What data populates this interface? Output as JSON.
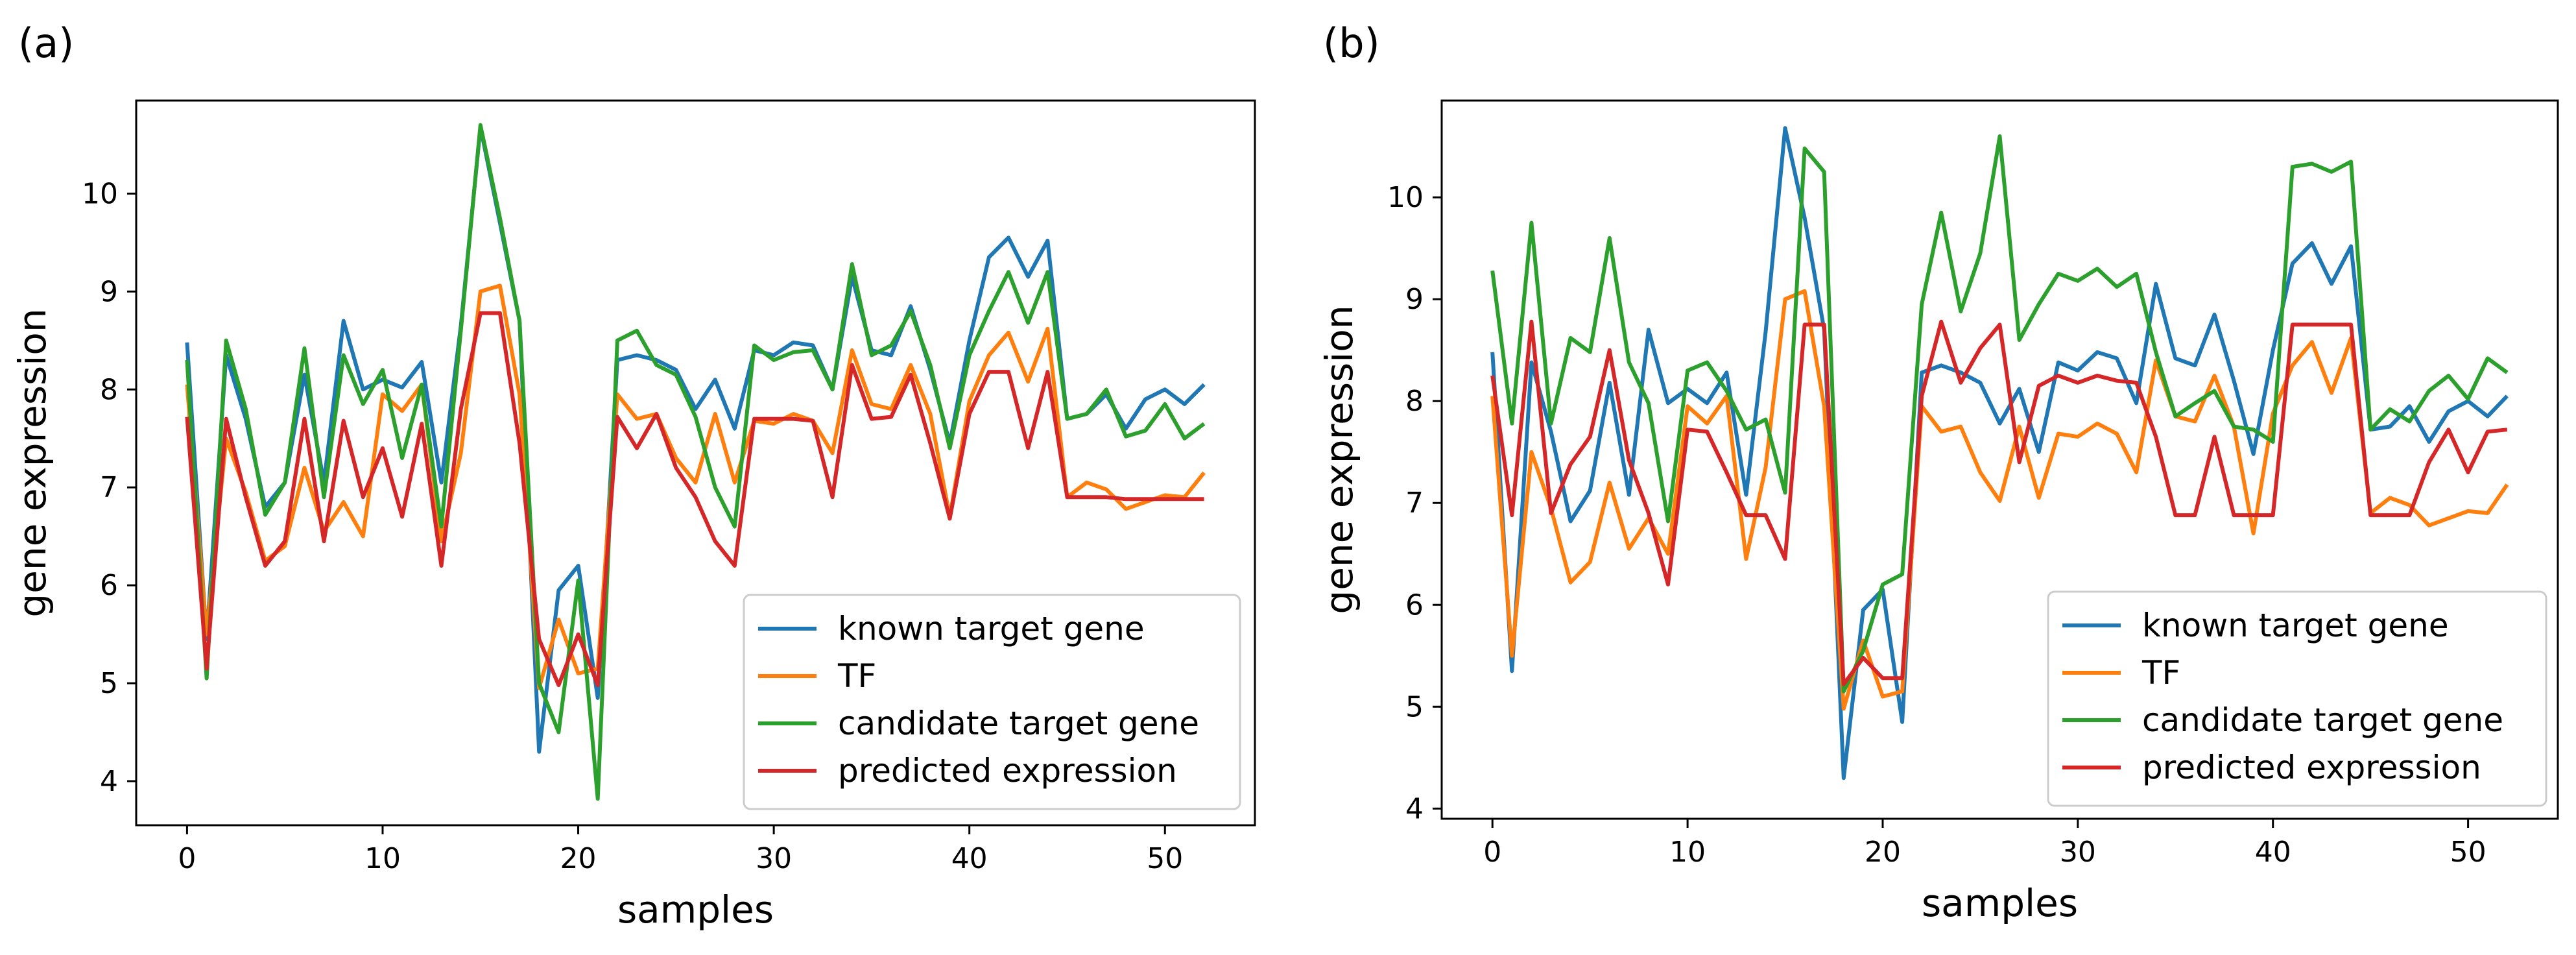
{
  "chart_data": [
    {
      "type": "line",
      "panel_label": "(a)",
      "xlabel": "samples",
      "ylabel": "gene expression",
      "xlim": [
        -2.6,
        54.6
      ],
      "ylim": [
        3.55,
        10.95
      ],
      "xticks": [
        0,
        10,
        20,
        30,
        40,
        50
      ],
      "yticks": [
        4,
        5,
        6,
        7,
        8,
        9,
        10
      ],
      "legend_position": "lower-right",
      "series": [
        {
          "name": "known target gene",
          "color": "#1f77b4",
          "values": [
            8.48,
            5.45,
            8.35,
            7.7,
            6.8,
            7.05,
            8.15,
            7.05,
            8.7,
            8.0,
            8.1,
            8.02,
            8.28,
            7.05,
            8.65,
            10.68,
            9.7,
            8.7,
            4.3,
            5.95,
            6.2,
            4.85,
            8.3,
            8.35,
            8.3,
            8.2,
            7.8,
            8.1,
            7.6,
            8.4,
            8.35,
            8.48,
            8.45,
            8.0,
            9.15,
            8.4,
            8.35,
            8.85,
            8.2,
            7.45,
            8.5,
            9.35,
            9.55,
            9.15,
            9.52,
            7.7,
            7.75,
            7.95,
            7.6,
            7.9,
            8.0,
            7.85,
            8.05
          ]
        },
        {
          "name": "TF",
          "color": "#ff7f0e",
          "values": [
            8.05,
            5.5,
            7.5,
            6.95,
            6.25,
            6.4,
            7.2,
            6.55,
            6.85,
            6.5,
            7.95,
            7.78,
            8.05,
            6.45,
            7.35,
            9.0,
            9.06,
            7.95,
            4.95,
            5.65,
            5.1,
            5.15,
            7.95,
            7.7,
            7.75,
            7.3,
            7.05,
            7.75,
            7.05,
            7.68,
            7.65,
            7.75,
            7.68,
            7.35,
            8.4,
            7.85,
            7.8,
            8.25,
            7.75,
            6.7,
            7.88,
            8.35,
            8.58,
            8.08,
            8.62,
            6.9,
            7.05,
            6.98,
            6.78,
            6.85,
            6.92,
            6.9,
            7.15
          ]
        },
        {
          "name": "candidate target gene",
          "color": "#2ca02c",
          "values": [
            8.3,
            5.05,
            8.5,
            7.8,
            6.72,
            7.05,
            8.42,
            6.9,
            8.35,
            7.85,
            8.2,
            7.3,
            8.05,
            6.6,
            8.6,
            10.7,
            9.75,
            8.7,
            5.0,
            4.5,
            6.05,
            3.82,
            8.5,
            8.6,
            8.25,
            8.15,
            7.72,
            7.0,
            6.6,
            8.45,
            8.3,
            8.38,
            8.4,
            8.0,
            9.28,
            8.35,
            8.45,
            8.8,
            8.25,
            7.4,
            8.35,
            8.8,
            9.2,
            8.68,
            9.2,
            7.7,
            7.75,
            8.0,
            7.52,
            7.58,
            7.85,
            7.5,
            7.65
          ]
        },
        {
          "name": "predicted expression",
          "color": "#d62728",
          "values": [
            7.72,
            5.15,
            7.7,
            6.9,
            6.2,
            6.45,
            7.7,
            6.45,
            7.68,
            6.9,
            7.4,
            6.7,
            7.65,
            6.2,
            7.8,
            8.78,
            8.78,
            7.45,
            5.45,
            4.98,
            5.5,
            4.98,
            7.72,
            7.4,
            7.75,
            7.2,
            6.9,
            6.45,
            6.2,
            7.7,
            7.7,
            7.7,
            7.68,
            6.9,
            8.25,
            7.7,
            7.72,
            8.15,
            7.45,
            6.68,
            7.75,
            8.18,
            8.18,
            7.4,
            8.18,
            6.9,
            6.9,
            6.9,
            6.88,
            6.88,
            6.88,
            6.88,
            6.88
          ]
        }
      ],
      "legend": [
        "known target gene",
        "TF",
        "candidate target gene",
        "predicted expression"
      ]
    },
    {
      "type": "line",
      "panel_label": "(b)",
      "xlabel": "samples",
      "ylabel": "gene expression",
      "xlim": [
        -2.6,
        54.6
      ],
      "ylim": [
        3.9,
        10.95
      ],
      "xticks": [
        0,
        10,
        20,
        30,
        40,
        50
      ],
      "yticks": [
        4,
        5,
        6,
        7,
        8,
        9,
        10
      ],
      "legend_position": "lower-right",
      "series": [
        {
          "name": "known target gene",
          "color": "#1f77b4",
          "values": [
            8.48,
            5.35,
            8.38,
            7.7,
            6.82,
            7.12,
            8.18,
            7.08,
            8.7,
            7.98,
            8.12,
            7.98,
            8.28,
            7.08,
            8.68,
            10.68,
            9.8,
            8.7,
            4.3,
            5.95,
            6.15,
            4.85,
            8.28,
            8.35,
            8.28,
            8.18,
            7.78,
            8.12,
            7.5,
            8.38,
            8.3,
            8.48,
            8.42,
            7.98,
            9.15,
            8.42,
            8.35,
            8.85,
            8.2,
            7.48,
            8.5,
            9.35,
            9.55,
            9.15,
            9.52,
            7.72,
            7.75,
            7.95,
            7.6,
            7.9,
            8.0,
            7.85,
            8.05
          ]
        },
        {
          "name": "TF",
          "color": "#ff7f0e",
          "values": [
            8.05,
            5.5,
            7.5,
            6.95,
            6.22,
            6.42,
            7.2,
            6.55,
            6.85,
            6.5,
            7.95,
            7.78,
            8.05,
            6.45,
            7.35,
            9.0,
            9.08,
            7.95,
            4.98,
            5.65,
            5.1,
            5.15,
            7.95,
            7.7,
            7.75,
            7.3,
            7.02,
            7.75,
            7.05,
            7.68,
            7.65,
            7.78,
            7.68,
            7.3,
            8.4,
            7.85,
            7.8,
            8.25,
            7.75,
            6.7,
            7.88,
            8.35,
            8.58,
            8.08,
            8.62,
            6.9,
            7.05,
            6.98,
            6.78,
            6.85,
            6.92,
            6.9,
            7.18
          ]
        },
        {
          "name": "candidate target gene",
          "color": "#2ca02c",
          "values": [
            9.28,
            7.78,
            9.75,
            7.78,
            8.62,
            8.48,
            9.6,
            8.38,
            7.98,
            6.82,
            8.3,
            8.38,
            8.1,
            7.72,
            7.82,
            7.1,
            10.48,
            10.25,
            5.15,
            5.55,
            6.2,
            6.3,
            8.95,
            9.85,
            8.88,
            9.45,
            10.6,
            8.6,
            8.95,
            9.25,
            9.18,
            9.3,
            9.12,
            9.25,
            8.48,
            7.85,
            7.98,
            8.1,
            7.75,
            7.72,
            7.6,
            10.3,
            10.33,
            10.25,
            10.35,
            7.72,
            7.92,
            7.8,
            8.1,
            8.25,
            8.02,
            8.42,
            8.28
          ]
        },
        {
          "name": "predicted expression",
          "color": "#d62728",
          "values": [
            8.25,
            6.88,
            8.78,
            6.9,
            7.38,
            7.65,
            8.5,
            7.42,
            6.9,
            6.2,
            7.72,
            7.7,
            7.3,
            6.88,
            6.88,
            6.45,
            8.75,
            8.75,
            5.22,
            5.48,
            5.28,
            5.28,
            8.05,
            8.78,
            8.18,
            8.52,
            8.75,
            7.4,
            8.15,
            8.25,
            8.18,
            8.25,
            8.2,
            8.18,
            7.65,
            6.88,
            6.88,
            7.65,
            6.88,
            6.88,
            6.88,
            8.75,
            8.75,
            8.75,
            8.75,
            6.88,
            6.88,
            6.88,
            7.4,
            7.72,
            7.3,
            7.7,
            7.72
          ]
        }
      ],
      "legend": [
        "known target gene",
        "TF",
        "candidate target gene",
        "predicted expression"
      ]
    }
  ]
}
